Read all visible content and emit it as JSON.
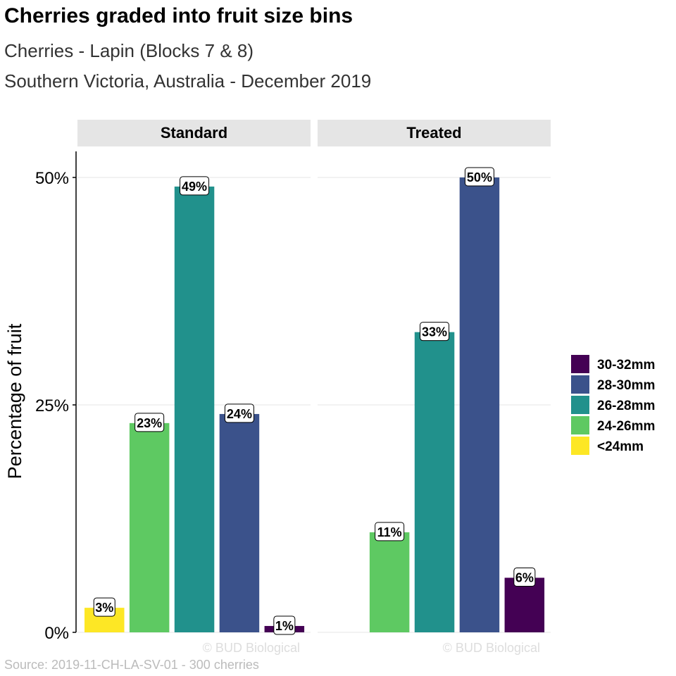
{
  "chart_data": {
    "type": "bar",
    "title": "Cherries graded into fruit size bins",
    "subtitle": [
      "Cherries - Lapin (Blocks 7 & 8)",
      "Southern Victoria, Australia - December 2019"
    ],
    "ylabel": "Percentage of fruit",
    "xlabel": "",
    "ylim": [
      0,
      52
    ],
    "yticks": [
      {
        "v": 0,
        "label": "0%"
      },
      {
        "v": 25,
        "label": "25%"
      },
      {
        "v": 50,
        "label": "50%"
      }
    ],
    "categories": [
      "<24mm",
      "24-26mm",
      "26-28mm",
      "28-30mm",
      "30-32mm"
    ],
    "colors": {
      "<24mm": "#fde725",
      "24-26mm": "#5ec962",
      "26-28mm": "#21918c",
      "28-30mm": "#3b528b",
      "30-32mm": "#440154"
    },
    "facets": [
      {
        "name": "Standard",
        "values": [
          2.7,
          23,
          49,
          24,
          0.7
        ],
        "labels": [
          "3%",
          "23%",
          "49%",
          "24%",
          "1%"
        ]
      },
      {
        "name": "Treated",
        "values": [
          0,
          11,
          33,
          50,
          6
        ],
        "labels": [
          "",
          "11%",
          "33%",
          "50%",
          "6%"
        ]
      }
    ],
    "legend": {
      "position": "right",
      "order": [
        "30-32mm",
        "28-30mm",
        "26-28mm",
        "24-26mm",
        "<24mm"
      ]
    },
    "grid": true,
    "watermark": "© BUD Biological",
    "caption": "Source: 2019-11-CH-LA-SV-01 - 300 cherries"
  }
}
